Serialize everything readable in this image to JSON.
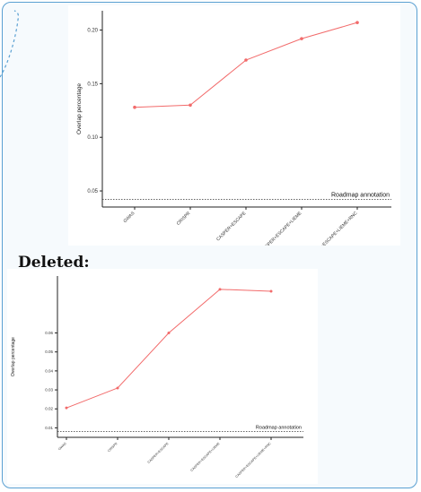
{
  "section_title": "Deleted:",
  "accent_colors": {
    "frame": "#5aa0d2",
    "series": "#f26b6b",
    "axis": "#222222"
  },
  "chart_data": [
    {
      "type": "line",
      "categories": [
        "GWAS",
        "CRISPR",
        "CASPER+ESCAPE",
        "CASPER+ESCAPE+LIEME",
        "CASPER+ESCAPE+LIEME+RNC"
      ],
      "series": [
        {
          "values": [
            0.128,
            0.13,
            0.172,
            0.192,
            0.207
          ]
        }
      ],
      "xlabel": "",
      "ylabel": "Overlap percentage",
      "yticks": [
        0.05,
        0.1,
        0.15,
        0.2
      ],
      "ytick_labels": [
        "0.05",
        "0.10",
        "0.15",
        "0.20"
      ],
      "ylim": [
        0.035,
        0.218
      ],
      "reference_line": {
        "value": 0.042,
        "label": "Roadmap annotation"
      },
      "grid": false
    },
    {
      "type": "line",
      "categories": [
        "GWAS",
        "CRISPR",
        "CASPER+ESCAPE",
        "CASPER+ESCAPE+LIEME",
        "CASPER+ESCAPE+LIEME+RNC"
      ],
      "series": [
        {
          "values": [
            0.0205,
            0.031,
            0.06,
            0.083,
            0.082
          ]
        }
      ],
      "xlabel": "",
      "ylabel": "Overlap percentage",
      "yticks": [
        0.01,
        0.02,
        0.03,
        0.04,
        0.05,
        0.06
      ],
      "ytick_labels": [
        "0.01",
        "0.02",
        "0.03",
        "0.04",
        "0.05",
        "0.06"
      ],
      "ylim": [
        0.005,
        0.09
      ],
      "reference_line": {
        "value": 0.008,
        "label": "Roadmap annotation"
      },
      "grid": false
    }
  ]
}
